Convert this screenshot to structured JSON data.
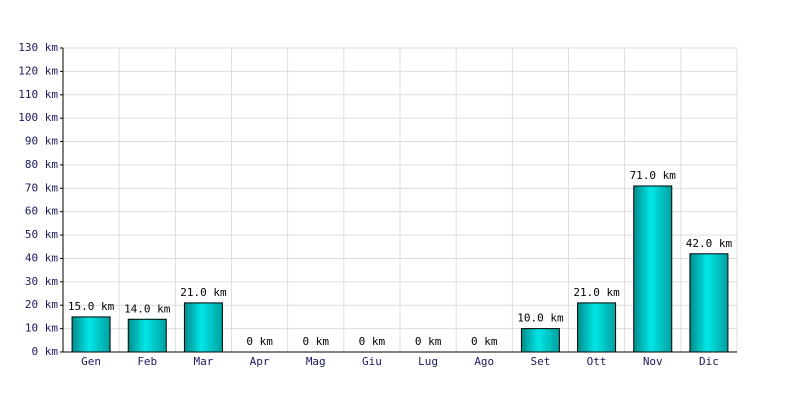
{
  "chart_data": {
    "type": "bar",
    "categories": [
      "Gen",
      "Feb",
      "Mar",
      "Apr",
      "Mag",
      "Giu",
      "Lug",
      "Ago",
      "Set",
      "Ott",
      "Nov",
      "Dic"
    ],
    "values": [
      15,
      14,
      21,
      0,
      0,
      0,
      0,
      0,
      10,
      21,
      71,
      42
    ],
    "value_labels": [
      "15.0 km",
      "14.0 km",
      "21.0 km",
      "0 km",
      "0 km",
      "0 km",
      "0 km",
      "0 km",
      "10.0 km",
      "21.0 km",
      "71.0 km",
      "42.0 km"
    ],
    "color": "#00c8c8",
    "ylim": [
      0,
      130
    ],
    "yticks": [
      {
        "value": 0,
        "label": "0 km"
      },
      {
        "value": 10,
        "label": "10 km"
      },
      {
        "value": 20,
        "label": "20 km"
      },
      {
        "value": 30,
        "label": "30 km"
      },
      {
        "value": 40,
        "label": "40 km"
      },
      {
        "value": 50,
        "label": "50 km"
      },
      {
        "value": 60,
        "label": "60 km"
      },
      {
        "value": 70,
        "label": "70 km"
      },
      {
        "value": 80,
        "label": "80 km"
      },
      {
        "value": 90,
        "label": "90 km"
      },
      {
        "value": 100,
        "label": "100 km"
      },
      {
        "value": 110,
        "label": "110 km"
      },
      {
        "value": 120,
        "label": "120 km"
      },
      {
        "value": 130,
        "label": "130 km"
      }
    ],
    "grid": true
  }
}
